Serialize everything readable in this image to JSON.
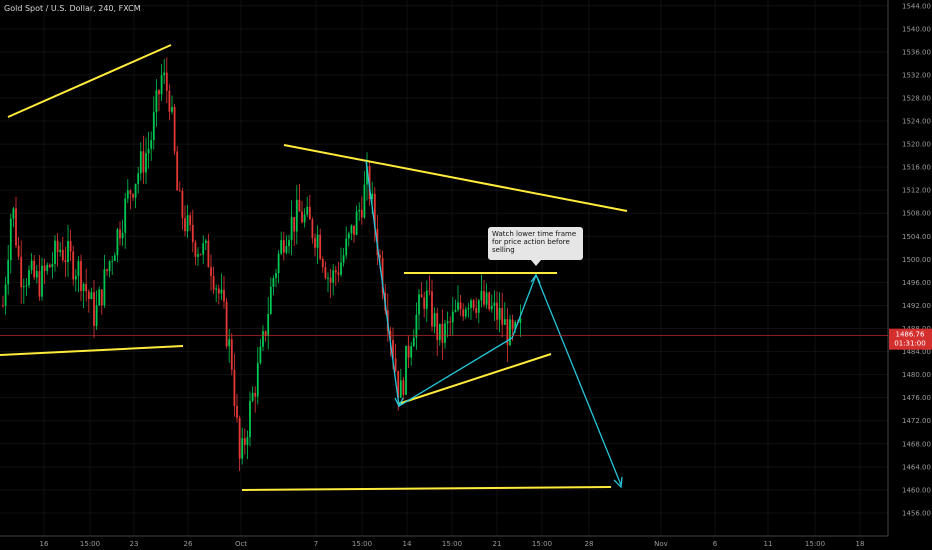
{
  "header": {
    "title": "Gold Spot / U.S. Dollar, 240, FXCM"
  },
  "annotation": {
    "text": "Watch lower time frame for price action before selling"
  },
  "current_price": {
    "value": 1486.76,
    "label": "1486.76",
    "countdown": "01:31:00",
    "color": "#d32f2f"
  },
  "colors": {
    "up": "#00c853",
    "down": "#e53935",
    "trendline": "#ffeb3b",
    "projection": "#26c6da",
    "grid": "#111111",
    "axis_text": "#9a9a9a"
  },
  "chart_data": {
    "type": "candlestick",
    "title": "Gold Spot / U.S. Dollar, 240, FXCM",
    "y_axis": {
      "side": "right",
      "min": 1452,
      "max": 1545,
      "ticks": [
        1456,
        1460,
        1464,
        1468,
        1472,
        1476,
        1480,
        1484,
        1488,
        1492,
        1496,
        1500,
        1504,
        1508,
        1512,
        1516,
        1520,
        1524,
        1528,
        1532,
        1536,
        1540,
        1544
      ]
    },
    "x_axis": {
      "labels": [
        "16",
        "15:00",
        "23",
        "26",
        "Oct",
        "7",
        "15:00",
        "14",
        "15:00",
        "21",
        "15:00",
        "28",
        "Nov",
        "6",
        "11",
        "15:00",
        "18"
      ]
    },
    "grid": true,
    "candles_visible": true
  }
}
